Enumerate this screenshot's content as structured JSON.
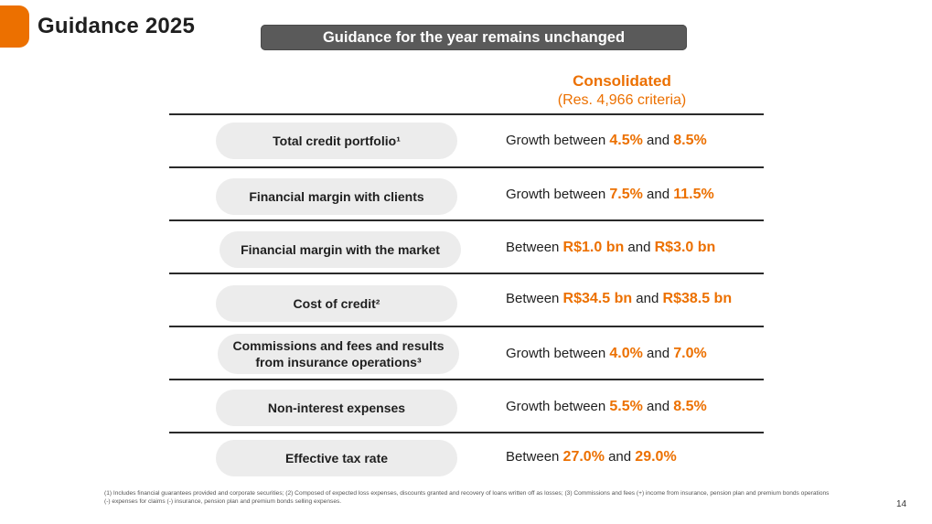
{
  "header": {
    "title": "Guidance 2025",
    "banner": "Guidance for the year remains unchanged"
  },
  "column_header": {
    "title": "Consolidated",
    "subtitle": "(Res. 4,966 criteria)"
  },
  "rows": [
    {
      "label": "Total credit portfolio¹",
      "prefix": "Growth between ",
      "low": "4.5%",
      "mid": " and ",
      "high": "8.5%"
    },
    {
      "label": "Financial margin with clients",
      "prefix": "Growth between ",
      "low": "7.5%",
      "mid": " and ",
      "high": "11.5%"
    },
    {
      "label": "Financial margin with the market",
      "prefix": "Between ",
      "low": "R$1.0 bn",
      "mid": " and ",
      "high": "R$3.0 bn"
    },
    {
      "label": "Cost of credit²",
      "prefix": "Between ",
      "low": "R$34.5 bn",
      "mid": " and ",
      "high": "R$38.5 bn"
    },
    {
      "label": "Commissions and fees and results from insurance operations³",
      "prefix": "Growth between ",
      "low": "4.0%",
      "mid": " and ",
      "high": "7.0%"
    },
    {
      "label": "Non-interest expenses",
      "prefix": "Growth between ",
      "low": "5.5%",
      "mid": " and ",
      "high": "8.5%"
    },
    {
      "label": "Effective tax rate",
      "prefix": "Between ",
      "low": "27.0%",
      "mid": " and ",
      "high": "29.0%"
    }
  ],
  "footnote": "(1) Includes financial guarantees provided and corporate securities; (2) Composed of expected loss expenses, discounts granted and recovery of loans written off as losses; (3) Commissions and fees (+) income from insurance, pension plan and premium bonds operations (-) expenses for claims (-) insurance, pension plan and premium bonds selling expenses.",
  "page_number": "14",
  "colors": {
    "accent": "#ec7000",
    "banner": "#5a5a5a",
    "pill": "#ececec"
  }
}
